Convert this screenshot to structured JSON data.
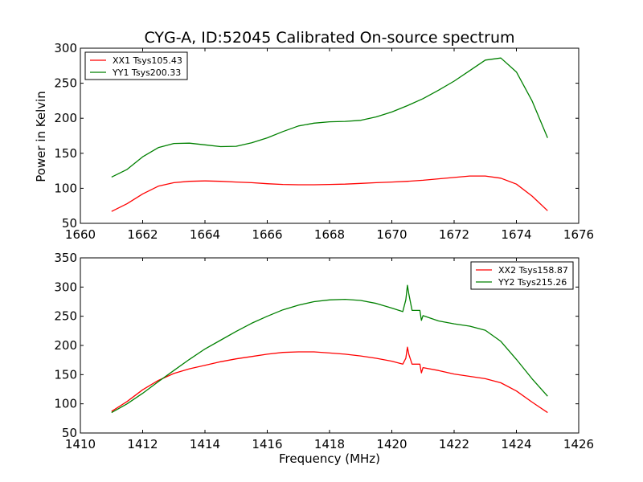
{
  "figure": {
    "title": "CYG-A, ID:52045 Calibrated On-source spectrum",
    "ylabel": "Power in Kelvin",
    "xlabel": "Frequency (MHz)"
  },
  "chart_data": [
    {
      "type": "line",
      "xlim": [
        1660,
        1676
      ],
      "ylim": [
        50,
        300
      ],
      "xticks": [
        "1660",
        "1662",
        "1664",
        "1666",
        "1668",
        "1670",
        "1672",
        "1674",
        "1676"
      ],
      "yticks": [
        "50",
        "100",
        "150",
        "200",
        "250",
        "300"
      ],
      "legend_position": "top-left",
      "series": [
        {
          "name": "XX1 Tsys105.43",
          "color": "#ff0000",
          "points": [
            [
              1661,
              67
            ],
            [
              1661.5,
              78
            ],
            [
              1662,
              92
            ],
            [
              1662.5,
              103
            ],
            [
              1663,
              108
            ],
            [
              1663.5,
              110
            ],
            [
              1664,
              110.5
            ],
            [
              1664.5,
              110
            ],
            [
              1665,
              109
            ],
            [
              1665.5,
              108
            ],
            [
              1666,
              106.5
            ],
            [
              1666.5,
              105.5
            ],
            [
              1667,
              105
            ],
            [
              1667.5,
              105
            ],
            [
              1668,
              105.5
            ],
            [
              1668.5,
              106
            ],
            [
              1669,
              107
            ],
            [
              1669.5,
              108
            ],
            [
              1670,
              109
            ],
            [
              1670.5,
              110
            ],
            [
              1671,
              111.5
            ],
            [
              1671.5,
              113.5
            ],
            [
              1672,
              115.5
            ],
            [
              1672.5,
              117.5
            ],
            [
              1673,
              117.5
            ],
            [
              1673.5,
              114.5
            ],
            [
              1674,
              106
            ],
            [
              1674.5,
              89
            ],
            [
              1675,
              68
            ]
          ]
        },
        {
          "name": "YY1 Tsys200.33",
          "color": "#008000",
          "points": [
            [
              1661,
              116
            ],
            [
              1661.5,
              127
            ],
            [
              1662,
              145
            ],
            [
              1662.5,
              158
            ],
            [
              1663,
              164
            ],
            [
              1663.5,
              164.5
            ],
            [
              1664,
              162
            ],
            [
              1664.5,
              159.5
            ],
            [
              1665,
              160
            ],
            [
              1665.5,
              165
            ],
            [
              1666,
              172
            ],
            [
              1666.5,
              181
            ],
            [
              1667,
              189
            ],
            [
              1667.5,
              193
            ],
            [
              1668,
              195
            ],
            [
              1668.5,
              195.5
            ],
            [
              1669,
              197
            ],
            [
              1669.5,
              202
            ],
            [
              1670,
              209
            ],
            [
              1670.5,
              218
            ],
            [
              1671,
              228
            ],
            [
              1671.5,
              240
            ],
            [
              1672,
              253
            ],
            [
              1672.5,
              268
            ],
            [
              1673,
              283
            ],
            [
              1673.5,
              286
            ],
            [
              1674,
              266
            ],
            [
              1674.5,
              225
            ],
            [
              1675,
              172
            ]
          ]
        }
      ]
    },
    {
      "type": "line",
      "xlim": [
        1410,
        1426
      ],
      "ylim": [
        50,
        350
      ],
      "xticks": [
        "1410",
        "1412",
        "1414",
        "1416",
        "1418",
        "1420",
        "1422",
        "1424",
        "1426"
      ],
      "yticks": [
        "50",
        "100",
        "150",
        "200",
        "250",
        "300",
        "350"
      ],
      "legend_position": "top-right",
      "series": [
        {
          "name": "XX2 Tsys158.87",
          "color": "#ff0000",
          "points": [
            [
              1411,
              87
            ],
            [
              1411.5,
              104
            ],
            [
              1412,
              124
            ],
            [
              1412.5,
              140
            ],
            [
              1413,
              152
            ],
            [
              1413.5,
              160
            ],
            [
              1414,
              166
            ],
            [
              1414.5,
              172
            ],
            [
              1415,
              177
            ],
            [
              1415.5,
              181
            ],
            [
              1416,
              185
            ],
            [
              1416.5,
              188
            ],
            [
              1417,
              189
            ],
            [
              1417.5,
              189
            ],
            [
              1418,
              187
            ],
            [
              1418.5,
              185
            ],
            [
              1419,
              182
            ],
            [
              1419.5,
              178
            ],
            [
              1420,
              173
            ],
            [
              1420.35,
              168
            ],
            [
              1420.45,
              178
            ],
            [
              1420.5,
              197
            ],
            [
              1420.55,
              184
            ],
            [
              1420.65,
              168
            ],
            [
              1420.9,
              168
            ],
            [
              1420.95,
              153
            ],
            [
              1421,
              162
            ],
            [
              1421.5,
              157
            ],
            [
              1422,
              151
            ],
            [
              1422.5,
              147
            ],
            [
              1423,
              143
            ],
            [
              1423.5,
              136
            ],
            [
              1424,
              122
            ],
            [
              1424.5,
              103
            ],
            [
              1425,
              85
            ]
          ]
        },
        {
          "name": "YY2 Tsys215.26",
          "color": "#008000",
          "points": [
            [
              1411,
              85
            ],
            [
              1411.5,
              100
            ],
            [
              1412,
              118
            ],
            [
              1412.5,
              138
            ],
            [
              1413,
              157
            ],
            [
              1413.5,
              176
            ],
            [
              1414,
              194
            ],
            [
              1414.5,
              209
            ],
            [
              1415,
              224
            ],
            [
              1415.5,
              238
            ],
            [
              1416,
              250
            ],
            [
              1416.5,
              261
            ],
            [
              1417,
              269
            ],
            [
              1417.5,
              275
            ],
            [
              1418,
              278
            ],
            [
              1418.5,
              279
            ],
            [
              1419,
              277
            ],
            [
              1419.5,
              272
            ],
            [
              1420,
              264
            ],
            [
              1420.35,
              258
            ],
            [
              1420.45,
              278
            ],
            [
              1420.5,
              303
            ],
            [
              1420.55,
              287
            ],
            [
              1420.65,
              260
            ],
            [
              1420.9,
              260
            ],
            [
              1420.95,
              243
            ],
            [
              1421,
              251
            ],
            [
              1421.5,
              242
            ],
            [
              1422,
              237
            ],
            [
              1422.5,
              233
            ],
            [
              1423,
              226
            ],
            [
              1423.5,
              207
            ],
            [
              1424,
              176
            ],
            [
              1424.5,
              143
            ],
            [
              1425,
              113
            ]
          ]
        }
      ]
    }
  ]
}
